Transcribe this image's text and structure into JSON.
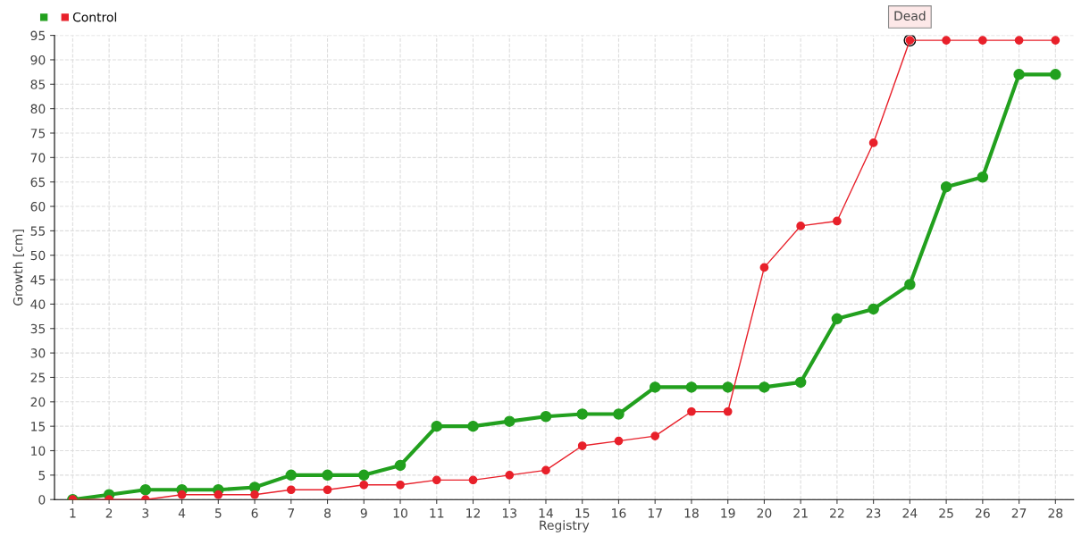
{
  "chart_data": {
    "type": "line",
    "xlabel": "Registry",
    "ylabel": "Growth [cm]",
    "categories": [
      "1",
      "2",
      "3",
      "4",
      "5",
      "6",
      "7",
      "8",
      "9",
      "10",
      "11",
      "12",
      "13",
      "14",
      "15",
      "16",
      "17",
      "18",
      "19",
      "20",
      "21",
      "22",
      "23",
      "24",
      "25",
      "26",
      "27",
      "28"
    ],
    "series": [
      {
        "color": "#22a01e",
        "values": [
          0,
          1,
          2,
          2,
          2,
          2.5,
          5,
          5,
          5,
          7,
          15,
          15,
          16,
          17,
          17.5,
          17.5,
          23,
          23,
          23,
          23,
          24,
          37,
          39,
          44,
          64,
          66,
          87,
          87
        ]
      },
      {
        "name": "Control",
        "color": "#e8202a",
        "values": [
          0,
          0,
          0,
          1,
          1,
          1,
          2,
          2,
          3,
          3,
          4,
          4,
          5,
          6,
          11,
          12,
          13,
          18,
          18,
          47.5,
          56,
          57,
          73,
          94,
          94,
          94,
          94,
          94
        ]
      }
    ],
    "annotations": [
      {
        "text": "Dead",
        "x": "24",
        "y": 94
      }
    ],
    "ylim": [
      0,
      95
    ],
    "yticks": [
      0,
      5,
      10,
      15,
      20,
      25,
      30,
      35,
      40,
      45,
      50,
      55,
      60,
      65,
      70,
      75,
      80,
      85,
      90,
      95
    ],
    "grid": true,
    "legend": "top left",
    "marker": "circle",
    "line_style": "solid"
  }
}
